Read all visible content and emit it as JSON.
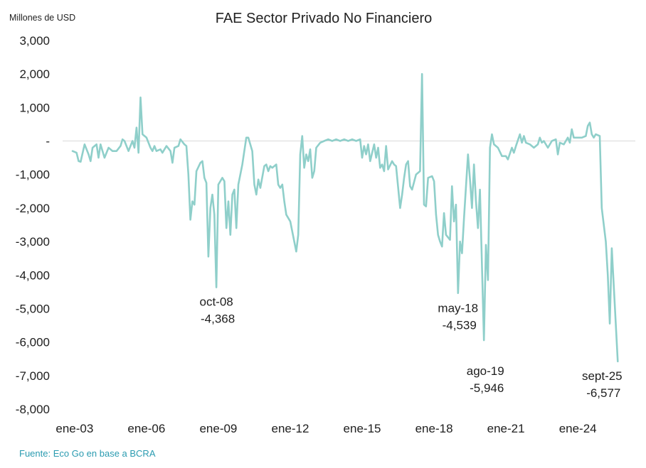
{
  "chart_data": {
    "type": "line",
    "title": "FAE Sector Privado No Financiero",
    "ylabel": "Millones de USD",
    "xlabel": "",
    "source": "Fuente: Eco Go en base a BCRA",
    "ylim": [
      -8000,
      3000
    ],
    "y_ticks": [
      {
        "value": 3000,
        "label": "3,000"
      },
      {
        "value": 2000,
        "label": "2,000"
      },
      {
        "value": 1000,
        "label": "1,000"
      },
      {
        "value": 0,
        "label": "-"
      },
      {
        "value": -1000,
        "label": "-1,000"
      },
      {
        "value": -2000,
        "label": "-2,000"
      },
      {
        "value": -3000,
        "label": "-3,000"
      },
      {
        "value": -4000,
        "label": "-4,000"
      },
      {
        "value": -5000,
        "label": "-5,000"
      },
      {
        "value": -6000,
        "label": "-6,000"
      },
      {
        "value": -7000,
        "label": "-7,000"
      },
      {
        "value": -8000,
        "label": "-8,000"
      }
    ],
    "x_ticks": [
      {
        "x": "2003-01",
        "label": "ene-03"
      },
      {
        "x": "2006-01",
        "label": "ene-06"
      },
      {
        "x": "2009-01",
        "label": "ene-09"
      },
      {
        "x": "2012-01",
        "label": "ene-12"
      },
      {
        "x": "2015-01",
        "label": "ene-15"
      },
      {
        "x": "2018-01",
        "label": "ene-18"
      },
      {
        "x": "2021-01",
        "label": "ene-21"
      },
      {
        "x": "2024-01",
        "label": "ene-24"
      }
    ],
    "series": [
      {
        "color": "#8fcfca",
        "points": [
          [
            "2002-12",
            -300
          ],
          [
            "2003-02",
            -350
          ],
          [
            "2003-03",
            -600
          ],
          [
            "2003-04",
            -620
          ],
          [
            "2003-06",
            -100
          ],
          [
            "2003-08",
            -400
          ],
          [
            "2003-09",
            -600
          ],
          [
            "2003-10",
            -200
          ],
          [
            "2003-12",
            -100
          ],
          [
            "2004-01",
            -500
          ],
          [
            "2004-02",
            -100
          ],
          [
            "2004-04",
            -500
          ],
          [
            "2004-06",
            -200
          ],
          [
            "2004-08",
            -300
          ],
          [
            "2004-10",
            -300
          ],
          [
            "2004-12",
            -150
          ],
          [
            "2005-01",
            50
          ],
          [
            "2005-02",
            0
          ],
          [
            "2005-04",
            -300
          ],
          [
            "2005-06",
            0
          ],
          [
            "2005-07",
            -200
          ],
          [
            "2005-08",
            400
          ],
          [
            "2005-09",
            -350
          ],
          [
            "2005-10",
            1300
          ],
          [
            "2005-11",
            200
          ],
          [
            "2006-01",
            100
          ],
          [
            "2006-03",
            -200
          ],
          [
            "2006-04",
            -300
          ],
          [
            "2006-05",
            -150
          ],
          [
            "2006-06",
            -300
          ],
          [
            "2006-08",
            -250
          ],
          [
            "2006-09",
            -350
          ],
          [
            "2006-11",
            -150
          ],
          [
            "2007-01",
            -300
          ],
          [
            "2007-02",
            -650
          ],
          [
            "2007-03",
            -200
          ],
          [
            "2007-05",
            -150
          ],
          [
            "2007-06",
            50
          ],
          [
            "2007-08",
            -100
          ],
          [
            "2007-09",
            -150
          ],
          [
            "2007-10",
            -1000
          ],
          [
            "2007-11",
            -2350
          ],
          [
            "2007-12",
            -1800
          ],
          [
            "2008-01",
            -1900
          ],
          [
            "2008-02",
            -900
          ],
          [
            "2008-04",
            -650
          ],
          [
            "2008-05",
            -600
          ],
          [
            "2008-06",
            -1100
          ],
          [
            "2008-07",
            -1250
          ],
          [
            "2008-08",
            -3450
          ],
          [
            "2008-09",
            -2000
          ],
          [
            "2008-10",
            -1600
          ],
          [
            "2008-11",
            -2200
          ],
          [
            "2008-12",
            -4368
          ],
          [
            "2009-01",
            -1300
          ],
          [
            "2009-03",
            -1100
          ],
          [
            "2009-04",
            -1200
          ],
          [
            "2009-05",
            -2600
          ],
          [
            "2009-06",
            -1800
          ],
          [
            "2009-07",
            -2800
          ],
          [
            "2009-08",
            -1600
          ],
          [
            "2009-09",
            -1450
          ],
          [
            "2009-10",
            -2600
          ],
          [
            "2009-11",
            -1300
          ],
          [
            "2010-01",
            -700
          ],
          [
            "2010-03",
            100
          ],
          [
            "2010-04",
            100
          ],
          [
            "2010-06",
            -300
          ],
          [
            "2010-07",
            -1300
          ],
          [
            "2010-08",
            -1600
          ],
          [
            "2010-09",
            -1150
          ],
          [
            "2010-10",
            -1400
          ],
          [
            "2010-12",
            -750
          ],
          [
            "2011-01",
            -700
          ],
          [
            "2011-02",
            -900
          ],
          [
            "2011-03",
            -750
          ],
          [
            "2011-04",
            -800
          ],
          [
            "2011-06",
            -700
          ],
          [
            "2011-07",
            -1300
          ],
          [
            "2011-08",
            -1400
          ],
          [
            "2011-09",
            -1300
          ],
          [
            "2011-10",
            -1800
          ],
          [
            "2011-11",
            -2200
          ],
          [
            "2012-01",
            -2400
          ],
          [
            "2012-03",
            -3000
          ],
          [
            "2012-04",
            -3300
          ],
          [
            "2012-05",
            -2800
          ],
          [
            "2012-06",
            -400
          ],
          [
            "2012-07",
            150
          ],
          [
            "2012-08",
            -800
          ],
          [
            "2012-09",
            -400
          ],
          [
            "2012-10",
            -600
          ],
          [
            "2012-11",
            -250
          ],
          [
            "2012-12",
            -1100
          ],
          [
            "2013-01",
            -900
          ],
          [
            "2013-02",
            -200
          ],
          [
            "2013-04",
            -50
          ],
          [
            "2013-06",
            0
          ],
          [
            "2013-08",
            50
          ],
          [
            "2013-10",
            0
          ],
          [
            "2013-12",
            50
          ],
          [
            "2014-02",
            0
          ],
          [
            "2014-04",
            50
          ],
          [
            "2014-06",
            0
          ],
          [
            "2014-08",
            50
          ],
          [
            "2014-10",
            0
          ],
          [
            "2014-12",
            50
          ],
          [
            "2015-01",
            -500
          ],
          [
            "2015-02",
            -150
          ],
          [
            "2015-03",
            -400
          ],
          [
            "2015-04",
            -100
          ],
          [
            "2015-05",
            -600
          ],
          [
            "2015-07",
            -100
          ],
          [
            "2015-08",
            -500
          ],
          [
            "2015-09",
            -200
          ],
          [
            "2015-10",
            -800
          ],
          [
            "2015-11",
            -700
          ],
          [
            "2015-12",
            -900
          ],
          [
            "2016-01",
            -150
          ],
          [
            "2016-02",
            -850
          ],
          [
            "2016-04",
            -600
          ],
          [
            "2016-05",
            -700
          ],
          [
            "2016-06",
            -750
          ],
          [
            "2016-08",
            -2000
          ],
          [
            "2016-09",
            -1600
          ],
          [
            "2016-10",
            -1100
          ],
          [
            "2016-11",
            -700
          ],
          [
            "2016-12",
            -600
          ],
          [
            "2017-01",
            -1350
          ],
          [
            "2017-02",
            -1450
          ],
          [
            "2017-04",
            -1000
          ],
          [
            "2017-06",
            -900
          ],
          [
            "2017-07",
            2000
          ],
          [
            "2017-08",
            -1900
          ],
          [
            "2017-09",
            -1950
          ],
          [
            "2017-10",
            -1100
          ],
          [
            "2017-12",
            -1050
          ],
          [
            "2018-01",
            -1200
          ],
          [
            "2018-02",
            -2200
          ],
          [
            "2018-03",
            -2800
          ],
          [
            "2018-04",
            -3000
          ],
          [
            "2018-05",
            -3150
          ],
          [
            "2018-06",
            -2150
          ],
          [
            "2018-07",
            -2800
          ],
          [
            "2018-09",
            -2950
          ],
          [
            "2018-10",
            -1350
          ],
          [
            "2018-11",
            -2400
          ],
          [
            "2018-12",
            -1900
          ],
          [
            "2019-01",
            -4539
          ],
          [
            "2019-02",
            -3000
          ],
          [
            "2019-03",
            -3350
          ],
          [
            "2019-04",
            -2300
          ],
          [
            "2019-06",
            -400
          ],
          [
            "2019-07",
            -1150
          ],
          [
            "2019-08",
            -2000
          ],
          [
            "2019-09",
            -700
          ],
          [
            "2019-10",
            -1800
          ],
          [
            "2019-11",
            -2600
          ],
          [
            "2019-12",
            -1450
          ],
          [
            "2020-02",
            -5946
          ],
          [
            "2020-03",
            -3100
          ],
          [
            "2020-04",
            -4150
          ],
          [
            "2020-05",
            -200
          ],
          [
            "2020-06",
            200
          ],
          [
            "2020-07",
            -100
          ],
          [
            "2020-09",
            -200
          ],
          [
            "2020-11",
            -450
          ],
          [
            "2021-01",
            -450
          ],
          [
            "2021-02",
            -550
          ],
          [
            "2021-04",
            -200
          ],
          [
            "2021-05",
            -350
          ],
          [
            "2021-06",
            -150
          ],
          [
            "2021-08",
            200
          ],
          [
            "2021-09",
            -50
          ],
          [
            "2021-10",
            150
          ],
          [
            "2021-11",
            -50
          ],
          [
            "2022-01",
            -100
          ],
          [
            "2022-03",
            -200
          ],
          [
            "2022-05",
            -100
          ],
          [
            "2022-06",
            100
          ],
          [
            "2022-07",
            -50
          ],
          [
            "2022-08",
            0
          ],
          [
            "2022-10",
            -200
          ],
          [
            "2022-12",
            0
          ],
          [
            "2023-02",
            50
          ],
          [
            "2023-03",
            -400
          ],
          [
            "2023-04",
            -50
          ],
          [
            "2023-06",
            -100
          ],
          [
            "2023-08",
            100
          ],
          [
            "2023-09",
            -50
          ],
          [
            "2023-10",
            350
          ],
          [
            "2023-11",
            100
          ],
          [
            "2024-01",
            100
          ],
          [
            "2024-03",
            100
          ],
          [
            "2024-05",
            150
          ],
          [
            "2024-06",
            450
          ],
          [
            "2024-07",
            550
          ],
          [
            "2024-08",
            200
          ],
          [
            "2024-09",
            100
          ],
          [
            "2024-10",
            200
          ],
          [
            "2024-12",
            150
          ],
          [
            "2025-01",
            -2000
          ],
          [
            "2025-03",
            -3000
          ],
          [
            "2025-04",
            -4000
          ],
          [
            "2025-05",
            -5450
          ],
          [
            "2025-06",
            -3200
          ],
          [
            "2025-09",
            -6577
          ]
        ]
      }
    ],
    "annotations": [
      {
        "x": "2008-12",
        "y": -4368,
        "label": "oct-08",
        "value": "-4,368"
      },
      {
        "x": "2019-01",
        "y": -4539,
        "label": "may-18",
        "value": "-4,539"
      },
      {
        "x": "2020-02",
        "y": -5946,
        "label": "ago-19",
        "value": "-5,946"
      },
      {
        "x": "2025-09",
        "y": -6577,
        "label": "sept-25",
        "value": "-6,577"
      }
    ],
    "grid": false,
    "zero_line": true,
    "legend": "none"
  }
}
